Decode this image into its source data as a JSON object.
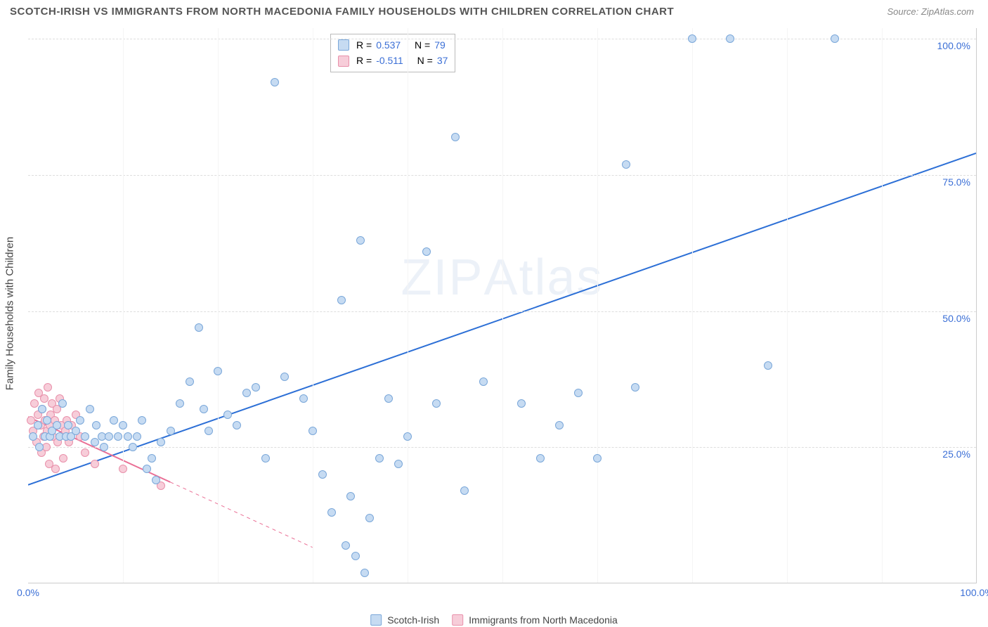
{
  "title": "SCOTCH-IRISH VS IMMIGRANTS FROM NORTH MACEDONIA FAMILY HOUSEHOLDS WITH CHILDREN CORRELATION CHART",
  "source_label": "Source: ZipAtlas.com",
  "y_axis_label": "Family Households with Children",
  "watermark_main": "ZIP",
  "watermark_sub": "Atlas",
  "chart": {
    "type": "scatter",
    "xlim": [
      0,
      100
    ],
    "ylim": [
      0,
      102
    ],
    "ytick_values": [
      25,
      50,
      75,
      100
    ],
    "ytick_labels": [
      "25.0%",
      "50.0%",
      "75.0%",
      "100.0%"
    ],
    "x_start_label": "0.0%",
    "x_end_label": "100.0%",
    "x_minor_ticks": [
      0,
      10,
      20,
      30,
      40,
      50,
      60,
      70,
      80,
      90,
      100
    ],
    "grid_color": "#dddddd",
    "background_color": "#ffffff"
  },
  "series": {
    "blue": {
      "label": "Scotch-Irish",
      "R": "0.537",
      "N": "79",
      "fill": "#c6dbf2",
      "stroke": "#7aa7d9",
      "point_radius": 6,
      "trend": {
        "x1": 0,
        "y1": 18,
        "x2": 100,
        "y2": 79,
        "color": "#2c6fd6",
        "width": 2
      },
      "data": [
        [
          0.5,
          27
        ],
        [
          1.0,
          29
        ],
        [
          1.2,
          25
        ],
        [
          1.5,
          32
        ],
        [
          1.8,
          27
        ],
        [
          2.0,
          30
        ],
        [
          2.3,
          27
        ],
        [
          2.5,
          28
        ],
        [
          3.0,
          29
        ],
        [
          3.3,
          27
        ],
        [
          3.6,
          33
        ],
        [
          4.0,
          27
        ],
        [
          4.2,
          29
        ],
        [
          4.5,
          27
        ],
        [
          5.0,
          28
        ],
        [
          5.5,
          30
        ],
        [
          6.0,
          27
        ],
        [
          6.5,
          32
        ],
        [
          7.0,
          26
        ],
        [
          7.2,
          29
        ],
        [
          7.8,
          27
        ],
        [
          8.0,
          25
        ],
        [
          8.5,
          27
        ],
        [
          9.0,
          30
        ],
        [
          9.5,
          27
        ],
        [
          10.0,
          29
        ],
        [
          10.5,
          27
        ],
        [
          11.0,
          25
        ],
        [
          11.5,
          27
        ],
        [
          12.0,
          30
        ],
        [
          12.5,
          21
        ],
        [
          13.0,
          23
        ],
        [
          13.5,
          19
        ],
        [
          14.0,
          26
        ],
        [
          15.0,
          28
        ],
        [
          16.0,
          33
        ],
        [
          17.0,
          37
        ],
        [
          18.0,
          47
        ],
        [
          18.5,
          32
        ],
        [
          19.0,
          28
        ],
        [
          20.0,
          39
        ],
        [
          21.0,
          31
        ],
        [
          22.0,
          29
        ],
        [
          23.0,
          35
        ],
        [
          24.0,
          36
        ],
        [
          25.0,
          23
        ],
        [
          26.0,
          92
        ],
        [
          27.0,
          38
        ],
        [
          29.0,
          34
        ],
        [
          30.0,
          28
        ],
        [
          31.0,
          20
        ],
        [
          32.0,
          13
        ],
        [
          33.0,
          52
        ],
        [
          33.5,
          7
        ],
        [
          34.0,
          16
        ],
        [
          34.5,
          5
        ],
        [
          35.0,
          63
        ],
        [
          35.5,
          2
        ],
        [
          36.0,
          12
        ],
        [
          37.0,
          23
        ],
        [
          38.0,
          34
        ],
        [
          39.0,
          22
        ],
        [
          40.0,
          27
        ],
        [
          42.0,
          61
        ],
        [
          43.0,
          33
        ],
        [
          45.0,
          82
        ],
        [
          46.0,
          17
        ],
        [
          48.0,
          37
        ],
        [
          52.0,
          33
        ],
        [
          54.0,
          23
        ],
        [
          56.0,
          29
        ],
        [
          58.0,
          35
        ],
        [
          60.0,
          23
        ],
        [
          63.0,
          77
        ],
        [
          64.0,
          36
        ],
        [
          70.0,
          100
        ],
        [
          74.0,
          100
        ],
        [
          78.0,
          40
        ],
        [
          85.0,
          100
        ]
      ]
    },
    "pink": {
      "label": "Immigrants from North Macedonia",
      "R": "-0.511",
      "N": "37",
      "fill": "#f7cdd9",
      "stroke": "#e890aa",
      "point_radius": 6,
      "trend": {
        "x1": 0,
        "y1": 30.5,
        "x2": 15,
        "y2": 18.5,
        "color": "#ea6f95",
        "width": 2,
        "dash_ext_to": 30
      },
      "data": [
        [
          0.3,
          30
        ],
        [
          0.5,
          28
        ],
        [
          0.7,
          33
        ],
        [
          0.9,
          26
        ],
        [
          1.0,
          31
        ],
        [
          1.1,
          35
        ],
        [
          1.3,
          29
        ],
        [
          1.4,
          24
        ],
        [
          1.5,
          32
        ],
        [
          1.6,
          27
        ],
        [
          1.7,
          34
        ],
        [
          1.8,
          30
        ],
        [
          1.9,
          25
        ],
        [
          2.0,
          28
        ],
        [
          2.1,
          36
        ],
        [
          2.2,
          22
        ],
        [
          2.3,
          29
        ],
        [
          2.4,
          31
        ],
        [
          2.5,
          33
        ],
        [
          2.6,
          27
        ],
        [
          2.8,
          30
        ],
        [
          2.9,
          21
        ],
        [
          3.0,
          32
        ],
        [
          3.1,
          26
        ],
        [
          3.3,
          34
        ],
        [
          3.5,
          29
        ],
        [
          3.7,
          23
        ],
        [
          3.9,
          28
        ],
        [
          4.1,
          30
        ],
        [
          4.3,
          26
        ],
        [
          4.6,
          29
        ],
        [
          5.0,
          31
        ],
        [
          5.5,
          27
        ],
        [
          6.0,
          24
        ],
        [
          7.0,
          22
        ],
        [
          10.0,
          21
        ],
        [
          14.0,
          18
        ]
      ]
    }
  },
  "legend_top_terms": {
    "R_label": "R =",
    "N_label": "N ="
  }
}
